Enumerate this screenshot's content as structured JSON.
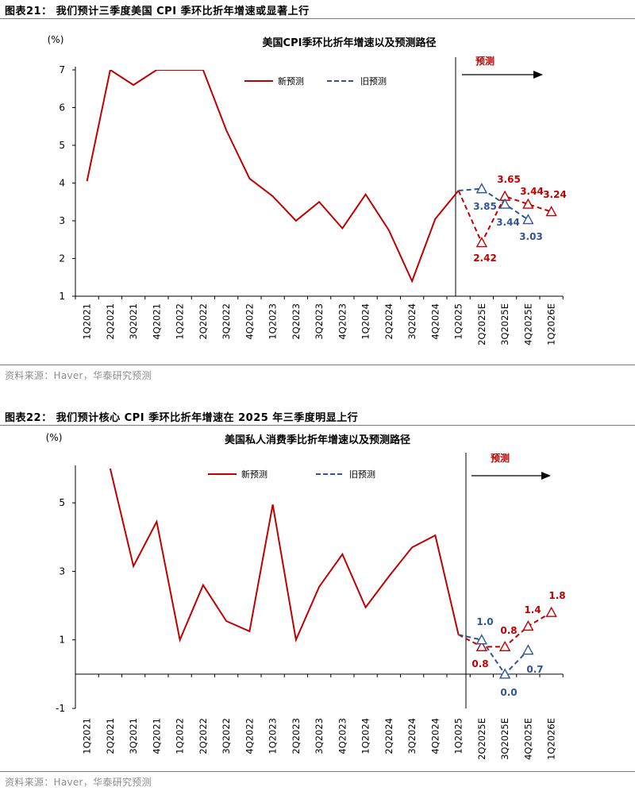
{
  "colors": {
    "new": "#c00000",
    "old": "#2f5597",
    "axis": "#000000",
    "divider": "#000000"
  },
  "figures": [
    {
      "label": "图表21：  我们预计三季度美国 CPI 季环比折年增速或显著上行",
      "source": "资料来源：Haver，华泰研究预测",
      "chart_title": "美国CPI季环比折年增速以及预测路径",
      "unit": "(%)",
      "legend_new": "新预测",
      "legend_old": "旧预测",
      "forecast_label": "预测",
      "y_ticks": [
        1,
        2,
        3,
        4,
        5,
        6,
        7
      ],
      "old_labels": [
        "3.85",
        "3.44",
        "3.03"
      ],
      "new_labels": [
        "3.65",
        "2.42",
        "3.44",
        "3.24"
      ]
    },
    {
      "label": "图表22：  我们预计核心 CPI 季环比折年增速在 2025 年三季度明显上行",
      "source": "资料来源：Haver，华泰研究预测",
      "chart_title": "美国私人消费季比折年增速以及预测路径",
      "unit": "(%)",
      "legend_new": "新预测",
      "legend_old": "旧预测",
      "forecast_label": "预测",
      "y_ticks": [
        -1,
        1,
        3,
        5
      ],
      "old_labels": [
        "1.0",
        "0.0",
        "0.7"
      ],
      "new_labels": [
        "0.8",
        "0.8",
        "1.4",
        "1.8"
      ]
    }
  ],
  "chart_data": [
    {
      "type": "line",
      "title": "美国CPI季环比折年增速以及预测路径",
      "ylabel": "(%)",
      "ylim": [
        1,
        7
      ],
      "categories": [
        "1Q2021",
        "2Q2021",
        "3Q2021",
        "4Q2021",
        "1Q2022",
        "2Q2022",
        "3Q2022",
        "4Q2022",
        "1Q2023",
        "2Q2023",
        "3Q2023",
        "4Q2023",
        "1Q2024",
        "2Q2024",
        "3Q2024",
        "4Q2024",
        "1Q2025",
        "2Q2025E",
        "3Q2025E",
        "4Q2025E",
        "1Q2026E"
      ],
      "series": [
        {
          "name": "actual",
          "values": [
            4.05,
            7.0,
            6.6,
            7.0,
            7.0,
            7.0,
            5.4,
            4.12,
            3.65,
            3.0,
            3.5,
            2.8,
            3.7,
            2.75,
            1.4,
            3.05,
            3.8,
            null,
            null,
            null,
            null
          ]
        },
        {
          "name": "新预测",
          "values": [
            null,
            null,
            null,
            null,
            null,
            null,
            null,
            null,
            null,
            null,
            null,
            null,
            null,
            null,
            null,
            null,
            3.8,
            2.42,
            3.65,
            3.44,
            3.24
          ]
        },
        {
          "name": "旧预测",
          "values": [
            null,
            null,
            null,
            null,
            null,
            null,
            null,
            null,
            null,
            null,
            null,
            null,
            null,
            null,
            null,
            null,
            3.8,
            3.85,
            3.44,
            3.03,
            null
          ]
        }
      ]
    },
    {
      "type": "line",
      "title": "美国私人消费季比折年增速以及预测路径",
      "ylabel": "(%)",
      "ylim": [
        -1,
        6
      ],
      "categories": [
        "1Q2021",
        "2Q2021",
        "3Q2021",
        "4Q2021",
        "1Q2022",
        "2Q2022",
        "3Q2022",
        "4Q2022",
        "1Q2023",
        "2Q2023",
        "3Q2023",
        "4Q2023",
        "1Q2024",
        "2Q2024",
        "3Q2024",
        "4Q2024",
        "1Q2025",
        "2Q2025E",
        "3Q2025E",
        "4Q2025E",
        "1Q2026E"
      ],
      "series": [
        {
          "name": "actual",
          "values": [
            null,
            6.0,
            3.15,
            4.45,
            1.0,
            2.6,
            1.55,
            1.25,
            4.95,
            1.0,
            2.55,
            3.5,
            1.95,
            2.85,
            3.7,
            4.05,
            1.15,
            null,
            null,
            null,
            null
          ]
        },
        {
          "name": "新预测",
          "values": [
            null,
            null,
            null,
            null,
            null,
            null,
            null,
            null,
            null,
            null,
            null,
            null,
            null,
            null,
            null,
            null,
            1.15,
            0.8,
            0.8,
            1.4,
            1.8
          ]
        },
        {
          "name": "旧预测",
          "values": [
            null,
            null,
            null,
            null,
            null,
            null,
            null,
            null,
            null,
            null,
            null,
            null,
            null,
            null,
            null,
            null,
            1.15,
            1.0,
            0.0,
            0.7,
            null
          ]
        }
      ]
    }
  ]
}
